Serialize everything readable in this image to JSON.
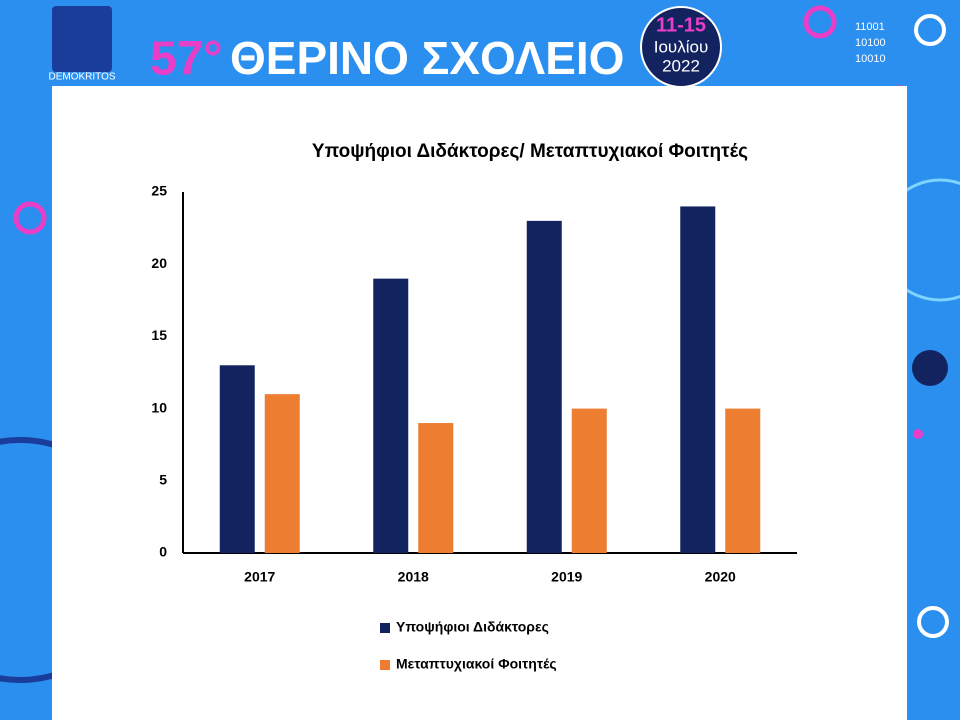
{
  "header": {
    "logo_text": "DEMOKRITOS",
    "edition": "57°",
    "title": "ΘΕΡΙΝΟ ΣΧΟΛΕΙΟ",
    "dates": "11-15",
    "month": "Ιουλίου",
    "year": "2022",
    "binary": [
      "11001",
      "10100",
      "10010"
    ]
  },
  "chart_data": {
    "type": "bar",
    "title": "Υποψήφιοι Διδάκτορες/ Μεταπτυχιακοί Φοιτητές",
    "categories": [
      "2017",
      "2018",
      "2019",
      "2020"
    ],
    "series": [
      {
        "name": "Υποψήφιοι Διδάκτορες",
        "color": "#13235f",
        "values": [
          13,
          19,
          23,
          24
        ]
      },
      {
        "name": "Μεταπτυχιακοί Φοιτητές",
        "color": "#ed7d31",
        "values": [
          11,
          9,
          10,
          10
        ]
      }
    ],
    "ylim": [
      0,
      25
    ],
    "yticks": [
      0,
      5,
      10,
      15,
      20,
      25
    ],
    "grid": false,
    "legend": "bottom"
  }
}
